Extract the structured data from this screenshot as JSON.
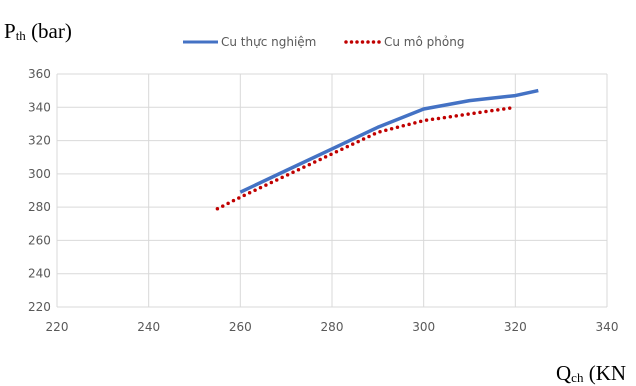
{
  "chart_data": {
    "type": "line",
    "ylabel": {
      "main": "P",
      "sub": "th",
      "unit": " (bar)"
    },
    "xlabel": {
      "main": "Q",
      "sub": "ch",
      "unit": " (KN"
    },
    "xlim": [
      220,
      340
    ],
    "ylim": [
      220,
      360
    ],
    "x_ticks": [
      220,
      240,
      260,
      280,
      300,
      320,
      340
    ],
    "y_ticks": [
      220,
      240,
      260,
      280,
      300,
      320,
      340,
      360
    ],
    "grid": true,
    "legend_position": "top",
    "series": [
      {
        "name": "Cu thực nghiệm",
        "style": "solid",
        "color": "#4472C4",
        "x": [
          260,
          270,
          280,
          290,
          300,
          310,
          320,
          325
        ],
        "y": [
          289,
          302,
          315,
          328,
          339,
          344,
          347,
          350
        ]
      },
      {
        "name": "Cu mô phỏng",
        "style": "dotted",
        "color": "#C00000",
        "x": [
          255,
          260,
          270,
          280,
          290,
          300,
          310,
          320
        ],
        "y": [
          279,
          286,
          299,
          312,
          325,
          332,
          336,
          340
        ]
      }
    ]
  }
}
